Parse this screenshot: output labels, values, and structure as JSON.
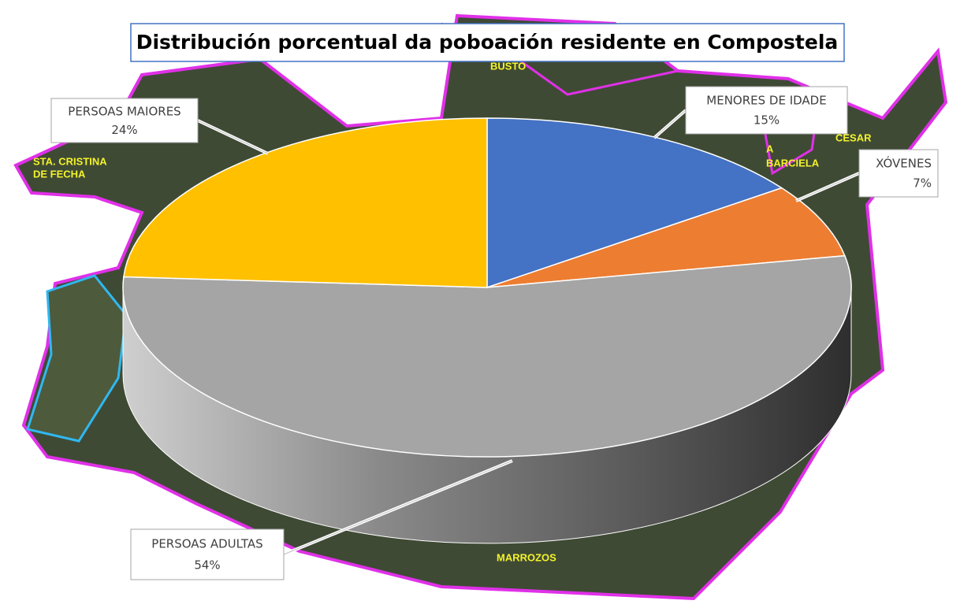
{
  "chart_data": {
    "type": "pie",
    "title": "Distribución porcentual da poboación residente en Compostela",
    "categories": [
      "MENORES DE IDADE",
      "XÓVENES",
      "PERSOAS ADULTAS",
      "PERSOAS MAIORES"
    ],
    "values": [
      15,
      7,
      54,
      24
    ],
    "value_labels": [
      "15%",
      "7%",
      "54%",
      "24%"
    ],
    "colors": [
      "#4472c4",
      "#ed7d31",
      "#a5a5a5",
      "#ffc000"
    ],
    "map_labels": [
      "BUSTO",
      "STA. CRISTINA",
      "DE FECHA",
      "A",
      "BARCIELA",
      "CESAR",
      "MARROZOS"
    ]
  }
}
